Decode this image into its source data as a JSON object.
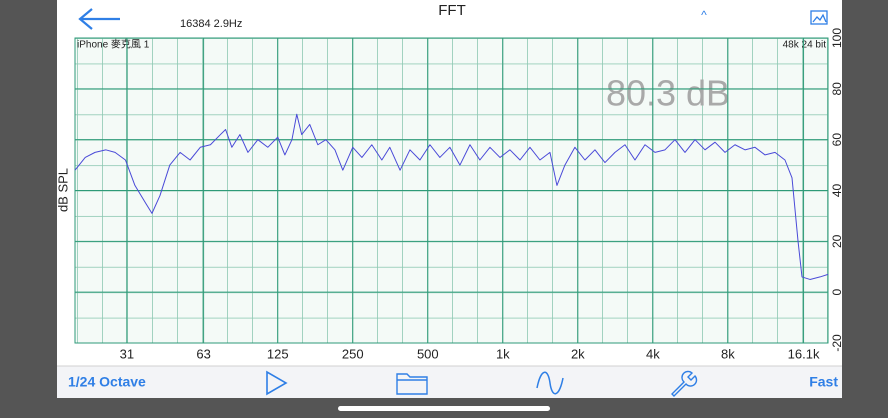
{
  "header": {
    "resolution": "16384  2.9Hz",
    "title": "FFT",
    "collapse": "^"
  },
  "chart_data": {
    "type": "line",
    "input_label": "iPhone 麥克風 1",
    "format_label": "48k 24 bit",
    "level_readout": "80.3 dB",
    "ylabel": "dB SPL",
    "x": [
      19.2,
      21.1,
      23.1,
      25.5,
      27.8,
      30.6,
      33.4,
      36.9,
      39.1,
      42.1,
      46.1,
      50.7,
      55.6,
      61.1,
      67.1,
      73.6,
      77.2,
      81.8,
      88.1,
      94.9,
      104,
      114,
      125,
      133.5,
      142.5,
      149,
      156,
      168,
      181,
      195,
      212,
      228,
      250,
      272,
      298,
      327,
      352,
      387,
      424,
      465,
      510,
      559,
      613,
      673,
      738,
      809,
      888,
      974,
      1068,
      1172,
      1285,
      1409,
      1546,
      1649,
      1775,
      1947,
      2136,
      2343,
      2570,
      2819,
      3092,
      3391,
      3720,
      4080,
      4475,
      4908,
      5384,
      5906,
      6478,
      7105,
      7792,
      8545,
      9372,
      10280,
      11280,
      12370,
      13560,
      14470,
      15300,
      15870,
      17090,
      18750,
      20180
    ],
    "series": [
      {
        "color": "#4a4ad8",
        "values": [
          48,
          53,
          55,
          56,
          55,
          52,
          42,
          35,
          31,
          38,
          50,
          55,
          52,
          57,
          58,
          62,
          64,
          57,
          62,
          55,
          60,
          57,
          61,
          54,
          60,
          70,
          62,
          66,
          58,
          60,
          56,
          48,
          57,
          53,
          58,
          52,
          57,
          48,
          56,
          52,
          58,
          53,
          57,
          50,
          58,
          52,
          57,
          53,
          56,
          52,
          57,
          52,
          55,
          42,
          50,
          57,
          52,
          56,
          51,
          55,
          58,
          52,
          58,
          55,
          56,
          60,
          55,
          60,
          56,
          59,
          55,
          58,
          56,
          57,
          54,
          55,
          52,
          45,
          20,
          6,
          5,
          6,
          7
        ]
      }
    ],
    "log_x": true,
    "xlim": [
      19.2,
      20180
    ],
    "xticks": [
      31,
      63,
      125,
      250,
      500,
      {
        "value": 1000,
        "label": "1k"
      },
      {
        "value": 2000,
        "label": "2k"
      },
      {
        "value": 4000,
        "label": "4k"
      },
      {
        "value": 8000,
        "label": "8k"
      },
      {
        "value": 16100,
        "label": "16.1k"
      }
    ],
    "ylim": [
      -20,
      100
    ],
    "yticks": [
      -20,
      0,
      20,
      40,
      60,
      80,
      100
    ],
    "grid": true
  },
  "toolbar": {
    "resolution": "1/24 Octave",
    "speed": "Fast"
  }
}
